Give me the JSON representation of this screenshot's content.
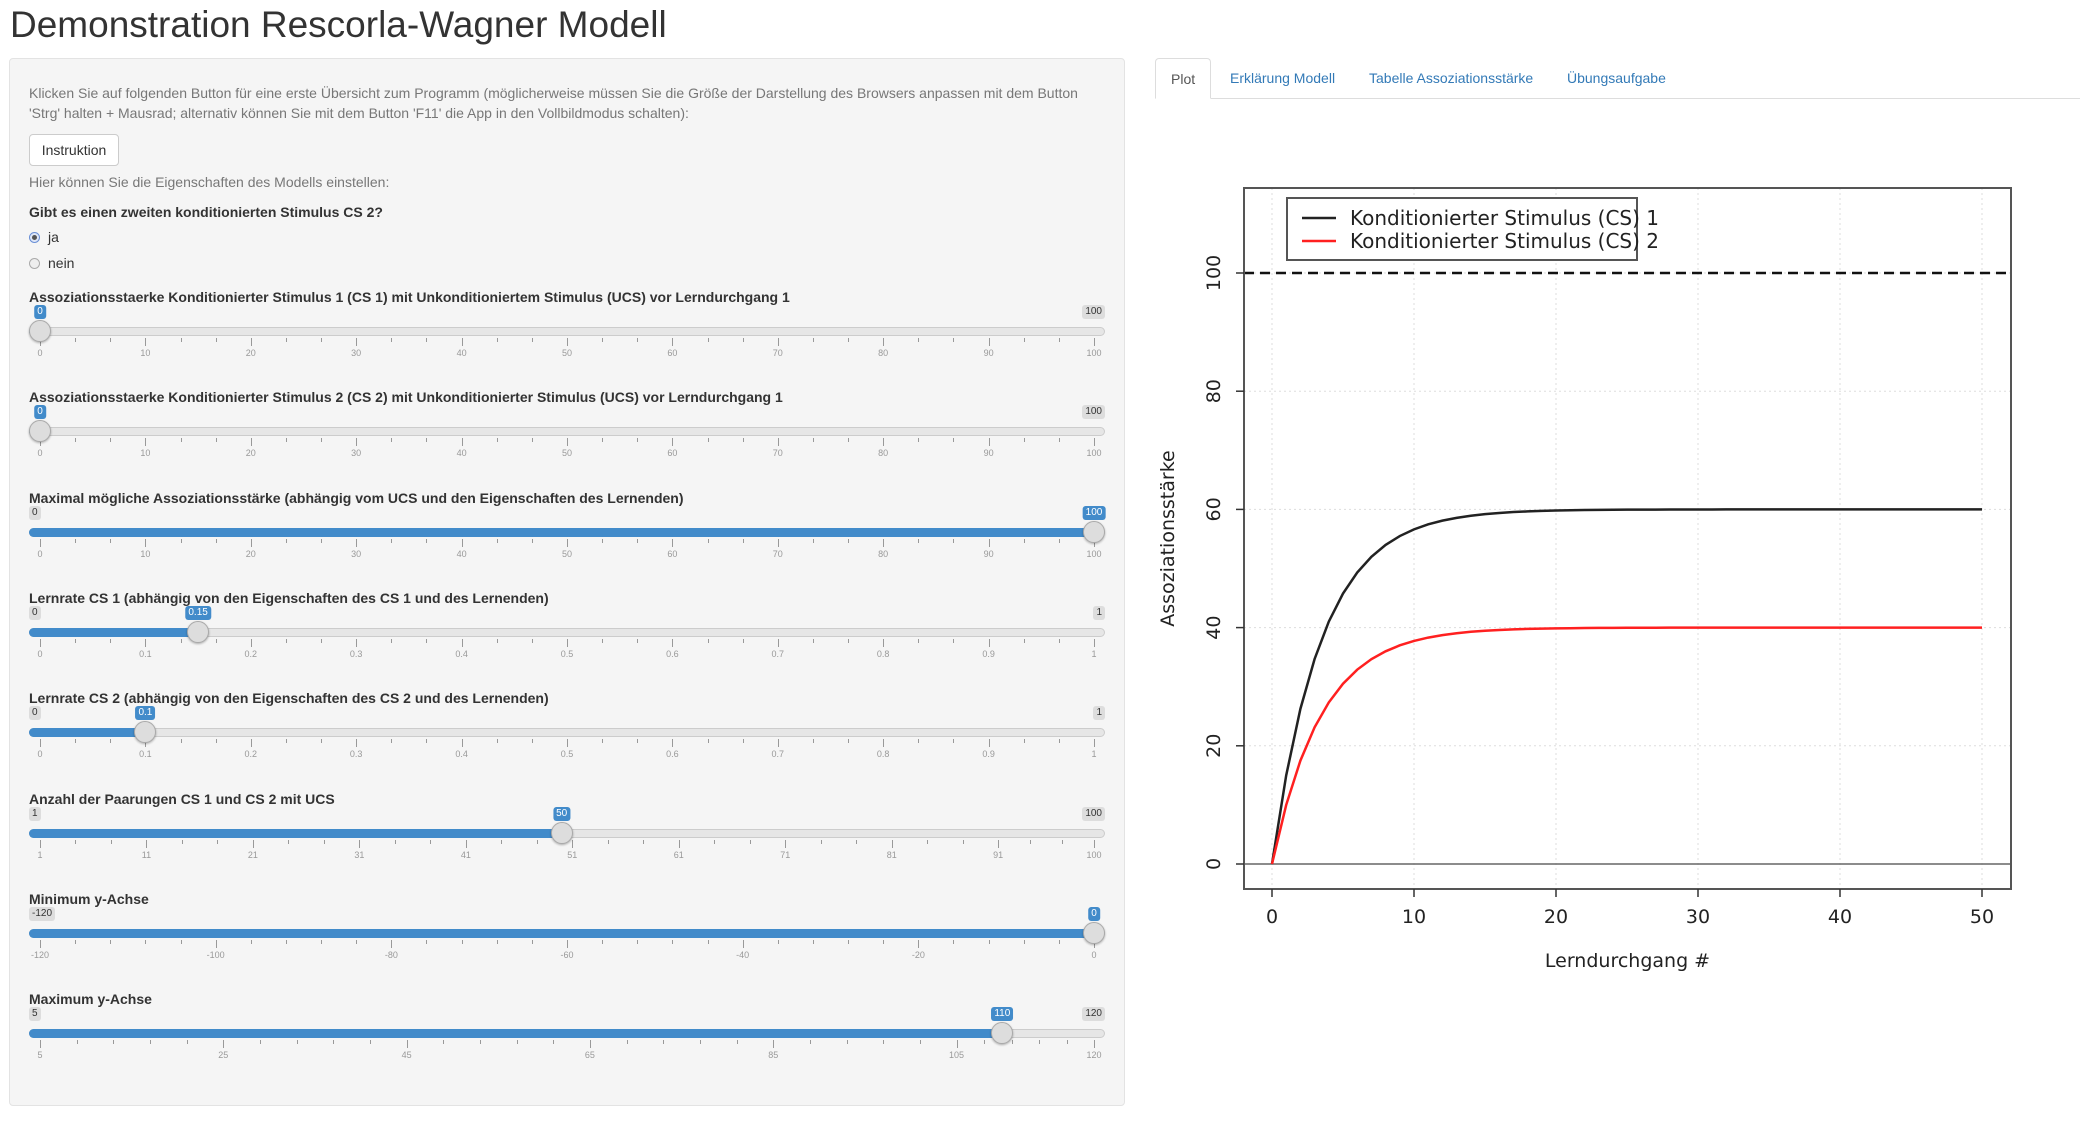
{
  "title": "Demonstration Rescorla-Wagner Modell",
  "sidebar": {
    "intro": "Klicken Sie auf folgenden Button für eine erste Übersicht zum Programm (möglicherweise müssen Sie die Größe der Darstellung des Browsers anpassen mit dem Button 'Strg' halten + Mausrad; alternativ können Sie mit dem Button 'F11' die App in den Vollbildmodus schalten):",
    "instruction_button": "Instruktion",
    "hint": "Hier können Sie die Eigenschaften des Modells einstellen:",
    "question": "Gibt es einen zweiten konditionierten Stimulus CS 2?",
    "options": [
      {
        "label": "ja",
        "selected": true
      },
      {
        "label": "nein",
        "selected": false
      }
    ],
    "sliders": [
      {
        "label": "Assoziationsstaerke Konditionierter Stimulus 1 (CS 1) mit Unkonditioniertem Stimulus (UCS) vor Lerndurchgang 1",
        "min": 0,
        "max": 100,
        "value": 0,
        "value_label": "0",
        "min_label": "0",
        "max_label": "100",
        "show_min": false,
        "show_max": true,
        "ticks": [
          "0",
          "10",
          "20",
          "30",
          "40",
          "50",
          "60",
          "70",
          "80",
          "90",
          "100"
        ]
      },
      {
        "label": "Assoziationsstaerke Konditionierter Stimulus 2 (CS 2) mit Unkonditionierter Stimulus (UCS) vor Lerndurchgang 1",
        "min": 0,
        "max": 100,
        "value": 0,
        "value_label": "0",
        "min_label": "0",
        "max_label": "100",
        "show_min": false,
        "show_max": true,
        "ticks": [
          "0",
          "10",
          "20",
          "30",
          "40",
          "50",
          "60",
          "70",
          "80",
          "90",
          "100"
        ]
      },
      {
        "label": "Maximal mögliche Assoziationsstärke (abhängig vom UCS und den Eigenschaften des Lernenden)",
        "min": 0,
        "max": 100,
        "value": 100,
        "value_label": "100",
        "min_label": "0",
        "max_label": "100",
        "show_min": true,
        "show_max": false,
        "ticks": [
          "0",
          "10",
          "20",
          "30",
          "40",
          "50",
          "60",
          "70",
          "80",
          "90",
          "100"
        ]
      },
      {
        "label": "Lernrate CS 1 (abhängig von den Eigenschaften des CS 1 und des Lernenden)",
        "min": 0,
        "max": 1,
        "value": 0.15,
        "value_label": "0.15",
        "min_label": "0",
        "max_label": "1",
        "show_min": true,
        "show_max": true,
        "ticks": [
          "0",
          "0.1",
          "0.2",
          "0.3",
          "0.4",
          "0.5",
          "0.6",
          "0.7",
          "0.8",
          "0.9",
          "1"
        ]
      },
      {
        "label": "Lernrate CS 2 (abhängig von den Eigenschaften des CS 2 und des Lernenden)",
        "min": 0,
        "max": 1,
        "value": 0.1,
        "value_label": "0.1",
        "min_label": "0",
        "max_label": "1",
        "show_min": true,
        "show_max": true,
        "ticks": [
          "0",
          "0.1",
          "0.2",
          "0.3",
          "0.4",
          "0.5",
          "0.6",
          "0.7",
          "0.8",
          "0.9",
          "1"
        ]
      },
      {
        "label": "Anzahl der Paarungen CS 1 und CS 2 mit UCS",
        "min": 1,
        "max": 100,
        "value": 50,
        "value_label": "50",
        "min_label": "1",
        "max_label": "100",
        "show_min": true,
        "show_max": true,
        "ticks": [
          "1",
          "11",
          "21",
          "31",
          "41",
          "51",
          "61",
          "71",
          "81",
          "91",
          "100"
        ]
      },
      {
        "label": "Minimum y-Achse",
        "min": -120,
        "max": 0,
        "value": 0,
        "value_label": "0",
        "min_label": "-120",
        "max_label": "0",
        "show_min": true,
        "show_max": false,
        "ticks": [
          "-120",
          "-100",
          "-80",
          "-60",
          "-40",
          "-20",
          "0"
        ]
      },
      {
        "label": "Maximum y-Achse",
        "min": 5,
        "max": 120,
        "value": 110,
        "value_label": "110",
        "min_label": "5",
        "max_label": "120",
        "show_min": true,
        "show_max": true,
        "ticks": [
          "5",
          "25",
          "45",
          "65",
          "85",
          "105",
          "120"
        ]
      }
    ]
  },
  "tabs": [
    {
      "label": "Plot",
      "active": true
    },
    {
      "label": "Erklärung Modell",
      "active": false
    },
    {
      "label": "Tabelle Assoziationsstärke",
      "active": false
    },
    {
      "label": "Übungsaufgabe",
      "active": false
    }
  ],
  "colors": {
    "accent": "#428bca",
    "cs1": "#222222",
    "cs2": "#ff2020"
  },
  "chart_data": {
    "type": "line",
    "xlabel": "Lerndurchgang #",
    "ylabel": "Assoziationsstärke",
    "xlim": [
      0,
      50
    ],
    "ylim": [
      0,
      110
    ],
    "xticks": [
      "0",
      "10",
      "20",
      "30",
      "40",
      "50"
    ],
    "yticks": [
      "0",
      "20",
      "40",
      "60",
      "80",
      "100"
    ],
    "grid": true,
    "legend": "top-left",
    "reference_lines": [
      {
        "y": 100,
        "style": "dashed"
      },
      {
        "y": 0,
        "style": "solid"
      }
    ],
    "x": [
      0,
      1,
      2,
      3,
      4,
      5,
      6,
      7,
      8,
      9,
      10,
      11,
      12,
      13,
      14,
      15,
      16,
      17,
      18,
      19,
      20,
      21,
      22,
      23,
      24,
      25,
      26,
      27,
      28,
      29,
      30,
      31,
      32,
      33,
      34,
      35,
      36,
      37,
      38,
      39,
      40,
      41,
      42,
      43,
      44,
      45,
      46,
      47,
      48,
      49,
      50
    ],
    "series": [
      {
        "name": "Konditionierter Stimulus (CS) 1",
        "color": "#222222",
        "values": [
          0,
          15,
          26.25,
          34.69,
          41.02,
          45.76,
          49.32,
          51.99,
          53.99,
          55.49,
          56.62,
          57.47,
          58.1,
          58.57,
          58.93,
          59.2,
          59.4,
          59.55,
          59.66,
          59.75,
          59.81,
          59.86,
          59.89,
          59.92,
          59.94,
          59.96,
          59.97,
          59.97,
          59.98,
          59.99,
          59.99,
          59.99,
          60,
          60,
          60,
          60,
          60,
          60,
          60,
          60,
          60,
          60,
          60,
          60,
          60,
          60,
          60,
          60,
          60,
          60,
          60
        ]
      },
      {
        "name": "Konditionierter Stimulus (CS) 2",
        "color": "#ff2020",
        "values": [
          0,
          10,
          17.5,
          23.13,
          27.34,
          30.51,
          32.88,
          34.66,
          35.99,
          37,
          37.75,
          38.31,
          38.73,
          39.05,
          39.29,
          39.47,
          39.6,
          39.7,
          39.78,
          39.83,
          39.87,
          39.9,
          39.93,
          39.95,
          39.96,
          39.97,
          39.98,
          39.98,
          39.99,
          39.99,
          39.99,
          40,
          40,
          40,
          40,
          40,
          40,
          40,
          40,
          40,
          40,
          40,
          40,
          40,
          40,
          40,
          40,
          40,
          40,
          40,
          40
        ]
      }
    ]
  }
}
